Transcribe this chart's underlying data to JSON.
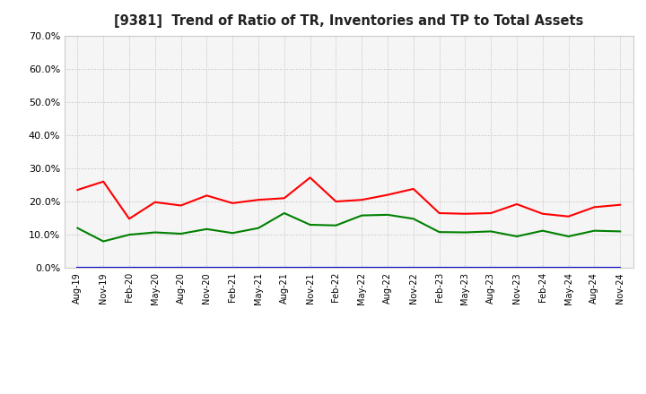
{
  "title": "[9381]  Trend of Ratio of TR, Inventories and TP to Total Assets",
  "x_labels": [
    "Aug-19",
    "Nov-19",
    "Feb-20",
    "May-20",
    "Aug-20",
    "Nov-20",
    "Feb-21",
    "May-21",
    "Aug-21",
    "Nov-21",
    "Feb-22",
    "May-22",
    "Aug-22",
    "Nov-22",
    "Feb-23",
    "May-23",
    "Aug-23",
    "Nov-23",
    "Feb-24",
    "May-24",
    "Aug-24",
    "Nov-24"
  ],
  "trade_receivables": [
    0.235,
    0.26,
    0.148,
    0.198,
    0.188,
    0.218,
    0.195,
    0.205,
    0.21,
    0.272,
    0.2,
    0.205,
    0.22,
    0.238,
    0.165,
    0.163,
    0.165,
    0.192,
    0.163,
    0.155,
    0.183,
    0.19
  ],
  "inventories": [
    0.001,
    0.001,
    0.001,
    0.001,
    0.001,
    0.001,
    0.001,
    0.001,
    0.001,
    0.001,
    0.001,
    0.001,
    0.001,
    0.001,
    0.001,
    0.001,
    0.001,
    0.001,
    0.001,
    0.001,
    0.001,
    0.001
  ],
  "trade_payables": [
    0.12,
    0.08,
    0.1,
    0.107,
    0.103,
    0.117,
    0.105,
    0.12,
    0.165,
    0.13,
    0.128,
    0.158,
    0.16,
    0.148,
    0.108,
    0.107,
    0.11,
    0.095,
    0.112,
    0.095,
    0.112,
    0.11
  ],
  "tr_color": "#ff0000",
  "inv_color": "#0000cc",
  "tp_color": "#008000",
  "ylim": [
    0.0,
    0.7
  ],
  "yticks": [
    0.0,
    0.1,
    0.2,
    0.3,
    0.4,
    0.5,
    0.6,
    0.7
  ],
  "background_color": "#ffffff",
  "grid_color": "#bbbbbb",
  "plot_bg_color": "#f5f5f5"
}
